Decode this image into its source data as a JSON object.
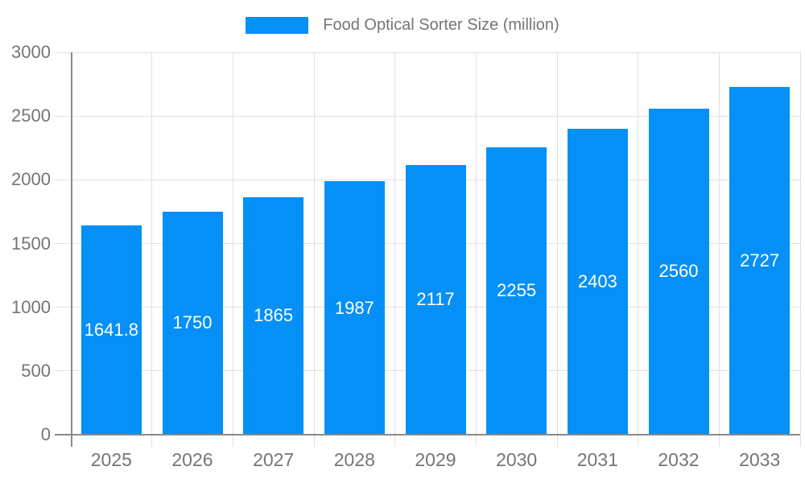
{
  "legend": {
    "label": "Food Optical Sorter Size (million)"
  },
  "colors": {
    "bar": "#0590F7",
    "grid": "#e0e0e0",
    "axis": "#8a8a8a",
    "text": "#757575",
    "value_label": "#ffffff",
    "background": "#ffffff"
  },
  "chart_data": {
    "type": "bar",
    "categories": [
      "2025",
      "2026",
      "2027",
      "2028",
      "2029",
      "2030",
      "2031",
      "2032",
      "2033"
    ],
    "values": [
      1641.8,
      1750,
      1865,
      1987,
      2117,
      2255,
      2403,
      2560,
      2727
    ],
    "value_labels": [
      "1641.8",
      "1750",
      "1865",
      "1987",
      "2117",
      "2255",
      "2403",
      "2560",
      "2727"
    ],
    "yticks": [
      "0",
      "500",
      "1000",
      "1500",
      "2000",
      "2500",
      "3000"
    ],
    "title": "Food Optical Sorter Size (million)",
    "xlabel": "",
    "ylabel": "",
    "ylim": [
      0,
      3000
    ],
    "ytick_step": 500,
    "grid": true,
    "legend_position": "top-center",
    "value_label_position": "inside-center"
  }
}
